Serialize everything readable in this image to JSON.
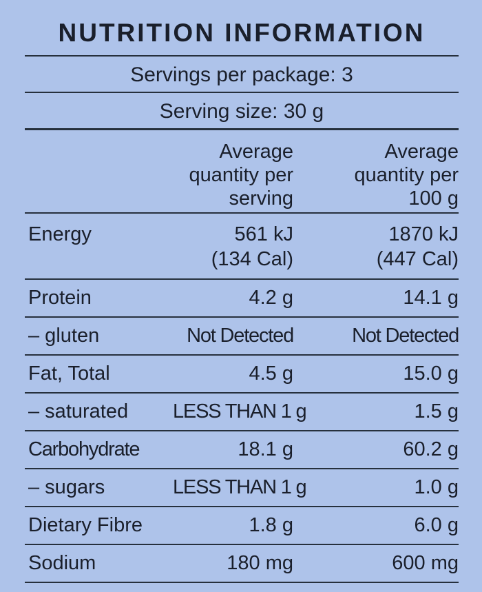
{
  "title": "NUTRITION INFORMATION",
  "servings_per_package": "Servings per package: 3",
  "serving_size": "Serving size: 30 g",
  "header": {
    "per_serving": [
      "Average",
      "quantity per",
      "serving"
    ],
    "per_100g": [
      "Average",
      "quantity per",
      "100 g"
    ]
  },
  "energy": {
    "label": "Energy",
    "per_serving": [
      "561 kJ",
      "(134 Cal)"
    ],
    "per_100g": [
      "1870 kJ",
      "(447 Cal)"
    ]
  },
  "rows": [
    {
      "label": "Protein",
      "per_serving": "4.2 g",
      "per_100g": "14.1 g"
    },
    {
      "label": "– gluten",
      "per_serving": "Not Detected",
      "per_100g": "Not Detected"
    },
    {
      "label": "Fat, Total",
      "per_serving": "4.5 g",
      "per_100g": "15.0 g"
    },
    {
      "label": "– saturated",
      "per_serving": "LESS THAN 1 g",
      "per_100g": "1.5 g"
    },
    {
      "label": "Carbohydrate",
      "per_serving": "18.1 g",
      "per_100g": "60.2 g"
    },
    {
      "label": "– sugars",
      "per_serving": "LESS THAN 1 g",
      "per_100g": "1.0 g"
    },
    {
      "label": "Dietary Fibre",
      "per_serving": "1.8 g",
      "per_100g": "6.0 g"
    },
    {
      "label": "Sodium",
      "per_serving": "180 mg",
      "per_100g": "600 mg"
    }
  ],
  "colors": {
    "background": "#aec3ea",
    "text": "#1a1f2b",
    "rule": "#26303d"
  }
}
